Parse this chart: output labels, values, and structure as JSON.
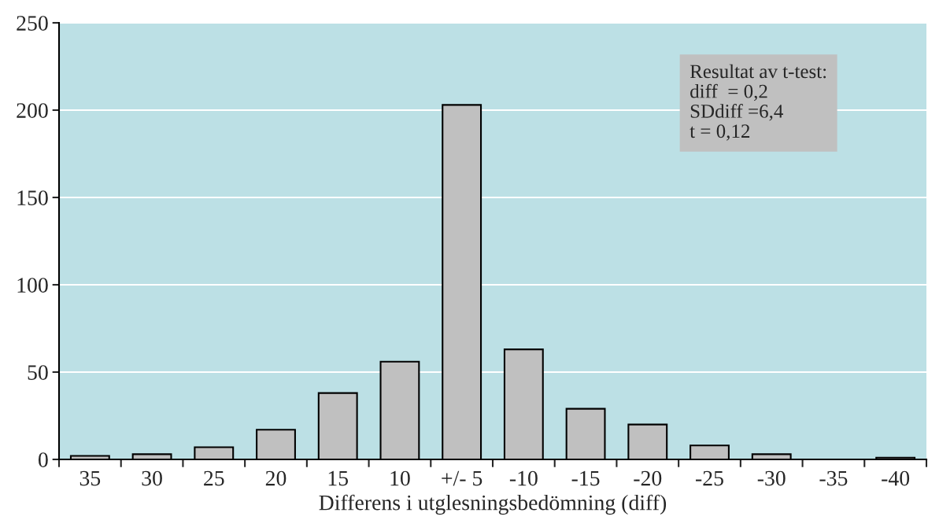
{
  "chart_data": {
    "type": "bar",
    "categories": [
      "35",
      "30",
      "25",
      "20",
      "15",
      "10",
      "+/- 5",
      "-10",
      "-15",
      "-20",
      "-25",
      "-30",
      "-35",
      "-40"
    ],
    "values": [
      2,
      3,
      7,
      17,
      38,
      56,
      203,
      63,
      29,
      20,
      8,
      3,
      0,
      1
    ],
    "color": "#c0c0c0",
    "xlabel": "Differens i utglesningsbedömning (diff)",
    "ylim": [
      0,
      250
    ],
    "yticks": [
      0,
      50,
      100,
      150,
      200,
      250
    ],
    "grid": "y",
    "annotations": [
      "Resultat av t-test:\ndiff  = 0,2\nSDdiff =6,4\nt = 0,12"
    ]
  }
}
